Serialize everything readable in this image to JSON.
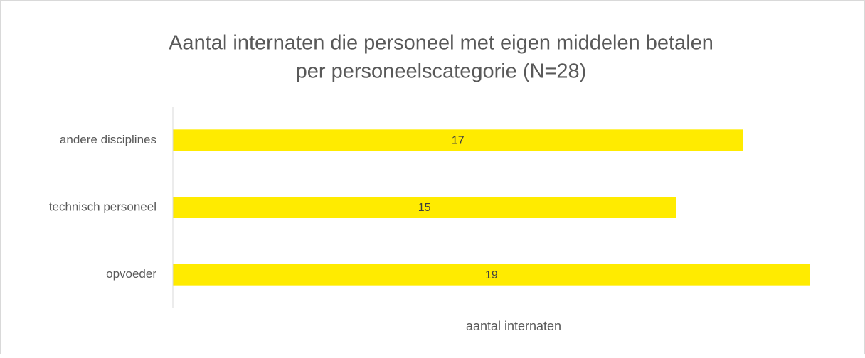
{
  "chart_data": {
    "type": "bar",
    "orientation": "horizontal",
    "title": [
      "Aantal internaten die personeel met eigen middelen betalen",
      "per personeelscategorie (N=28)"
    ],
    "categories": [
      "andere disciplines",
      "technisch personeel",
      "opvoeder"
    ],
    "values": [
      17,
      15,
      19
    ],
    "color": "#ffeb00",
    "xlabel": "aantal internaten",
    "xlim": [
      0,
      20
    ]
  }
}
